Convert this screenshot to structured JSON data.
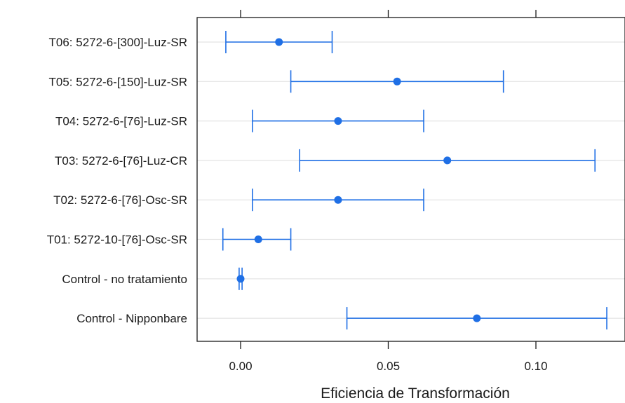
{
  "chart_data": {
    "type": "dot-errorbar",
    "xlabel": "Eficiencia de Transformación",
    "xlim": [
      -0.015,
      0.13
    ],
    "x_ticks": [
      0.0,
      0.05,
      0.1
    ],
    "x_tick_labels": [
      "0.00",
      "0.05",
      "0.10"
    ],
    "grid": "horizontal",
    "color": "#1f6fe5",
    "categories": [
      "T06: 5272-6-[300]-Luz-SR",
      "T05: 5272-6-[150]-Luz-SR",
      "T04: 5272-6-[76]-Luz-SR",
      "T03: 5272-6-[76]-Luz-CR",
      "T02: 5272-6-[76]-Osc-SR",
      "T01: 5272-10-[76]-Osc-SR",
      "Control - no tratamiento",
      "Control - Nipponbare"
    ],
    "points": [
      {
        "estimate": 0.013,
        "lower": -0.005,
        "upper": 0.031
      },
      {
        "estimate": 0.053,
        "lower": 0.017,
        "upper": 0.089
      },
      {
        "estimate": 0.033,
        "lower": 0.004,
        "upper": 0.062
      },
      {
        "estimate": 0.07,
        "lower": 0.02,
        "upper": 0.12
      },
      {
        "estimate": 0.033,
        "lower": 0.004,
        "upper": 0.062
      },
      {
        "estimate": 0.006,
        "lower": -0.006,
        "upper": 0.017
      },
      {
        "estimate": 0.0,
        "lower": -0.0005,
        "upper": 0.0005
      },
      {
        "estimate": 0.08,
        "lower": 0.036,
        "upper": 0.124
      }
    ]
  }
}
